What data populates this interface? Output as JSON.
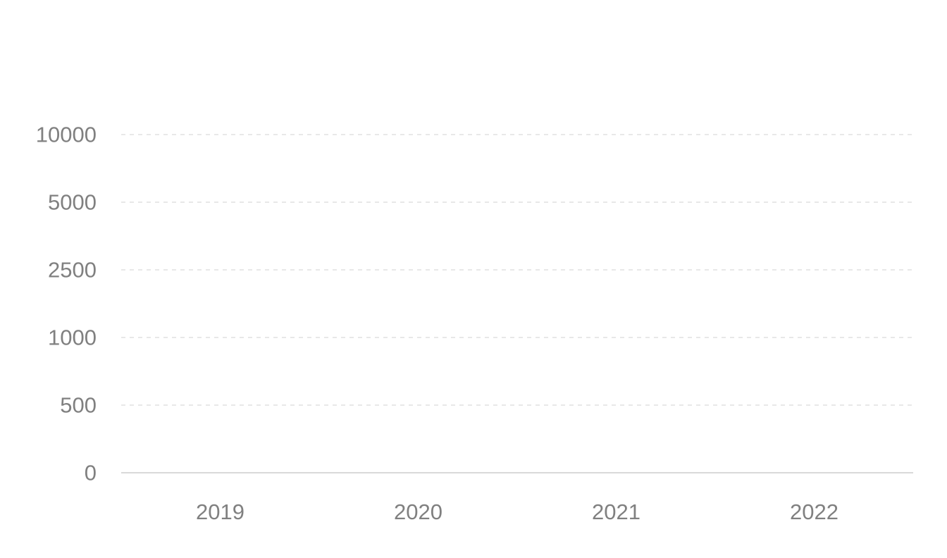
{
  "chart_data": {
    "type": "bar",
    "title": "",
    "xlabel": "",
    "ylabel": "",
    "categories": [
      "2019",
      "2020",
      "2021",
      "2022"
    ],
    "y_ticks": [
      "0",
      "500",
      "1000",
      "2500",
      "5000",
      "10000"
    ],
    "y_scale": "custom non-linear (equally spaced ticks)",
    "series": [
      {
        "values": [
          0,
          0,
          0,
          0
        ]
      }
    ],
    "grid": true,
    "grid_style": "dashed",
    "legend": "none"
  },
  "colors": {
    "background": "#ffffff",
    "tick_text": "#808080",
    "grid": "#e0e0e0",
    "axis": "#d9d9d9",
    "bar": "#5b8ff9"
  }
}
